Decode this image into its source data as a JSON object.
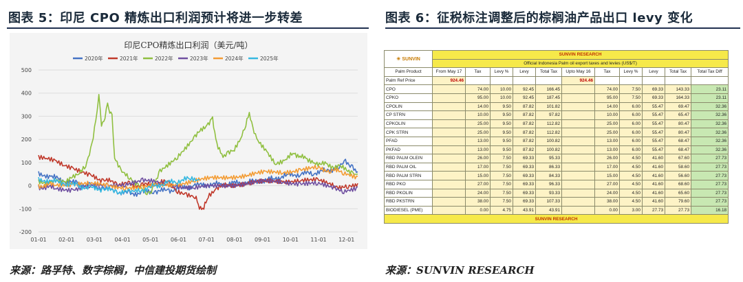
{
  "left": {
    "figure_title": "图表 5：印尼 CPO 精炼出口利润预计将进一步转差",
    "source": "来源：路孚特、数字棕榈，中信建投期货绘制"
  },
  "right": {
    "figure_title": "图表 6：征税标注调整后的棕榈油产品出口 levy 变化",
    "source": "来源：SUNVIN RESEARCH",
    "table": {
      "brand": "SUNVIN",
      "research_title": "SUNVIN RESEARCH",
      "subtitle": "Official Indonesia Palm oil export taxes and levies (US$/T)",
      "columns": [
        "Palm Product",
        "From May 17",
        "Tax",
        "Levy %",
        "Levy",
        "Total Tax",
        "Upto May 16",
        "Tax",
        "Levy %",
        "Levy",
        "Total Tax",
        "Total Tax Diff"
      ],
      "ref_label": "Palm Ref Price",
      "ref_price_from": "924.46",
      "ref_price_upto": "924.46",
      "rows": [
        {
          "name": "CPO",
          "v": [
            "74.00",
            "10.00",
            "92.45",
            "166.45",
            "74.00",
            "7.50",
            "69.33",
            "143.33",
            "23.11"
          ]
        },
        {
          "name": "CPKO",
          "v": [
            "95.00",
            "10.00",
            "92.45",
            "187.45",
            "95.00",
            "7.50",
            "69.33",
            "164.33",
            "23.11"
          ]
        },
        {
          "name": "CPOLIN",
          "v": [
            "14.00",
            "9.50",
            "87.82",
            "101.82",
            "14.00",
            "6.00",
            "55.47",
            "69.47",
            "32.36"
          ]
        },
        {
          "name": "CP STRN",
          "v": [
            "10.00",
            "9.50",
            "87.82",
            "97.82",
            "10.00",
            "6.00",
            "55.47",
            "65.47",
            "32.36"
          ]
        },
        {
          "name": "CPKOLIN",
          "v": [
            "25.00",
            "9.50",
            "87.82",
            "112.82",
            "25.00",
            "6.00",
            "55.47",
            "80.47",
            "32.36"
          ]
        },
        {
          "name": "CPK STRN",
          "v": [
            "25.00",
            "9.50",
            "87.82",
            "112.82",
            "25.00",
            "6.00",
            "55.47",
            "80.47",
            "32.36"
          ]
        },
        {
          "name": "PFAD",
          "v": [
            "13.00",
            "9.50",
            "87.82",
            "100.82",
            "13.00",
            "6.00",
            "55.47",
            "68.47",
            "32.36"
          ]
        },
        {
          "name": "PKFAD",
          "v": [
            "13.00",
            "9.50",
            "87.82",
            "100.82",
            "13.00",
            "6.00",
            "55.47",
            "68.47",
            "32.36"
          ]
        },
        {
          "name": "RBD PALM OLEIN",
          "v": [
            "26.00",
            "7.50",
            "69.33",
            "95.33",
            "26.00",
            "4.50",
            "41.60",
            "67.60",
            "27.73"
          ]
        },
        {
          "name": "RBD PALM OIL",
          "v": [
            "17.00",
            "7.50",
            "69.33",
            "86.33",
            "17.00",
            "4.50",
            "41.60",
            "58.60",
            "27.73"
          ]
        },
        {
          "name": "RBD PALM STRN",
          "v": [
            "15.00",
            "7.50",
            "69.33",
            "84.33",
            "15.00",
            "4.50",
            "41.60",
            "56.60",
            "27.73"
          ]
        },
        {
          "name": "RBD PKO",
          "v": [
            "27.00",
            "7.50",
            "69.33",
            "96.33",
            "27.00",
            "4.50",
            "41.60",
            "68.60",
            "27.73"
          ]
        },
        {
          "name": "RBD PKOLIN",
          "v": [
            "24.00",
            "7.50",
            "69.33",
            "93.33",
            "24.00",
            "4.50",
            "41.60",
            "65.60",
            "27.73"
          ]
        },
        {
          "name": "RBD PKSTRN",
          "v": [
            "38.00",
            "7.50",
            "69.33",
            "107.33",
            "38.00",
            "4.50",
            "41.60",
            "79.60",
            "27.73"
          ]
        },
        {
          "name": "BIODIESEL (PME)",
          "v": [
            "0.00",
            "4.75",
            "43.91",
            "43.91",
            "0.00",
            "3.00",
            "27.73",
            "27.73",
            "16.18"
          ]
        }
      ]
    }
  },
  "chart_data": {
    "type": "line",
    "title": "印尼CPO精炼出口利润（美元/吨）",
    "xlabel": "",
    "ylabel": "",
    "x_ticks": [
      "01-01",
      "02-01",
      "03-01",
      "04-01",
      "05-01",
      "06-01",
      "07-01",
      "08-01",
      "09-01",
      "10-01",
      "11-01",
      "12-01"
    ],
    "x_day_range": [
      1,
      366
    ],
    "ylim": [
      -200,
      500
    ],
    "y_ticks": [
      -200,
      -100,
      0,
      100,
      200,
      300,
      400,
      500
    ],
    "grid": true,
    "legend": "top",
    "series": [
      {
        "name": "2020年",
        "color": "#4472c4",
        "points": [
          [
            1,
            55
          ],
          [
            15,
            40
          ],
          [
            30,
            20
          ],
          [
            45,
            10
          ],
          [
            60,
            0
          ],
          [
            75,
            -10
          ],
          [
            90,
            -25
          ],
          [
            105,
            -35
          ],
          [
            120,
            -30
          ],
          [
            135,
            -25
          ],
          [
            150,
            -20
          ],
          [
            165,
            -10
          ],
          [
            180,
            0
          ],
          [
            195,
            5
          ],
          [
            210,
            5
          ],
          [
            225,
            10
          ],
          [
            240,
            15
          ],
          [
            255,
            20
          ],
          [
            270,
            30
          ],
          [
            285,
            45
          ],
          [
            300,
            50
          ],
          [
            315,
            55
          ],
          [
            330,
            65
          ],
          [
            345,
            80
          ],
          [
            352,
            100
          ],
          [
            360,
            85
          ],
          [
            366,
            60
          ]
        ]
      },
      {
        "name": "2021年",
        "color": "#c0392b",
        "points": [
          [
            1,
            125
          ],
          [
            10,
            115
          ],
          [
            20,
            110
          ],
          [
            30,
            95
          ],
          [
            40,
            80
          ],
          [
            50,
            60
          ],
          [
            60,
            40
          ],
          [
            75,
            25
          ],
          [
            90,
            10
          ],
          [
            105,
            5
          ],
          [
            120,
            0
          ],
          [
            135,
            10
          ],
          [
            150,
            15
          ],
          [
            160,
            -20
          ],
          [
            170,
            -35
          ],
          [
            180,
            -50
          ],
          [
            185,
            -90
          ],
          [
            190,
            -100
          ],
          [
            195,
            -40
          ],
          [
            205,
            -10
          ],
          [
            220,
            5
          ],
          [
            240,
            10
          ],
          [
            260,
            15
          ],
          [
            280,
            20
          ],
          [
            300,
            25
          ],
          [
            320,
            20
          ],
          [
            340,
            0
          ],
          [
            355,
            -10
          ],
          [
            366,
            10
          ]
        ]
      },
      {
        "name": "2022年",
        "color": "#8fbf3f",
        "points": [
          [
            1,
            20
          ],
          [
            15,
            15
          ],
          [
            30,
            20
          ],
          [
            45,
            40
          ],
          [
            55,
            90
          ],
          [
            62,
            180
          ],
          [
            68,
            330
          ],
          [
            70,
            395
          ],
          [
            73,
            250
          ],
          [
            77,
            300
          ],
          [
            80,
            350
          ],
          [
            85,
            300
          ],
          [
            88,
            120
          ],
          [
            95,
            60
          ],
          [
            105,
            30
          ],
          [
            115,
            0
          ],
          [
            125,
            -25
          ],
          [
            130,
            -30
          ],
          [
            140,
            60
          ],
          [
            160,
            130
          ],
          [
            180,
            210
          ],
          [
            195,
            270
          ],
          [
            200,
            285
          ],
          [
            205,
            180
          ],
          [
            212,
            120
          ],
          [
            218,
            140
          ],
          [
            225,
            150
          ],
          [
            232,
            200
          ],
          [
            238,
            260
          ],
          [
            242,
            320
          ],
          [
            246,
            250
          ],
          [
            252,
            200
          ],
          [
            262,
            150
          ],
          [
            272,
            90
          ],
          [
            282,
            100
          ],
          [
            292,
            140
          ],
          [
            300,
            130
          ],
          [
            308,
            110
          ],
          [
            318,
            100
          ],
          [
            330,
            90
          ],
          [
            345,
            80
          ],
          [
            360,
            60
          ],
          [
            366,
            50
          ]
        ]
      },
      {
        "name": "2023年",
        "color": "#6f4fa0",
        "points": [
          [
            1,
            -5
          ],
          [
            20,
            -10
          ],
          [
            40,
            -15
          ],
          [
            60,
            -5
          ],
          [
            80,
            0
          ],
          [
            100,
            10
          ],
          [
            120,
            20
          ],
          [
            140,
            10
          ],
          [
            160,
            0
          ],
          [
            180,
            -10
          ],
          [
            200,
            -5
          ],
          [
            220,
            5
          ],
          [
            240,
            10
          ],
          [
            260,
            15
          ],
          [
            280,
            20
          ],
          [
            300,
            10
          ],
          [
            320,
            5
          ],
          [
            340,
            -10
          ],
          [
            350,
            -20
          ],
          [
            366,
            -5
          ]
        ]
      },
      {
        "name": "2024年",
        "color": "#f39c34",
        "points": [
          [
            1,
            0
          ],
          [
            20,
            5
          ],
          [
            40,
            10
          ],
          [
            60,
            5
          ],
          [
            80,
            0
          ],
          [
            100,
            -5
          ],
          [
            120,
            -10
          ],
          [
            140,
            0
          ],
          [
            160,
            10
          ],
          [
            180,
            20
          ],
          [
            200,
            30
          ],
          [
            220,
            40
          ],
          [
            240,
            45
          ],
          [
            260,
            55
          ],
          [
            280,
            60
          ],
          [
            300,
            70
          ],
          [
            320,
            75
          ],
          [
            335,
            65
          ],
          [
            350,
            60
          ],
          [
            366,
            40
          ]
        ]
      },
      {
        "name": "2025年",
        "color": "#36b8e0",
        "points": [
          [
            1,
            30
          ],
          [
            15,
            20
          ],
          [
            30,
            10
          ],
          [
            45,
            0
          ],
          [
            60,
            -10
          ],
          [
            75,
            -15
          ],
          [
            90,
            -25
          ],
          [
            105,
            -30
          ],
          [
            118,
            -20
          ],
          [
            130,
            -5
          ],
          [
            145,
            10
          ],
          [
            160,
            20
          ],
          [
            175,
            30
          ],
          [
            185,
            25
          ]
        ]
      }
    ]
  }
}
